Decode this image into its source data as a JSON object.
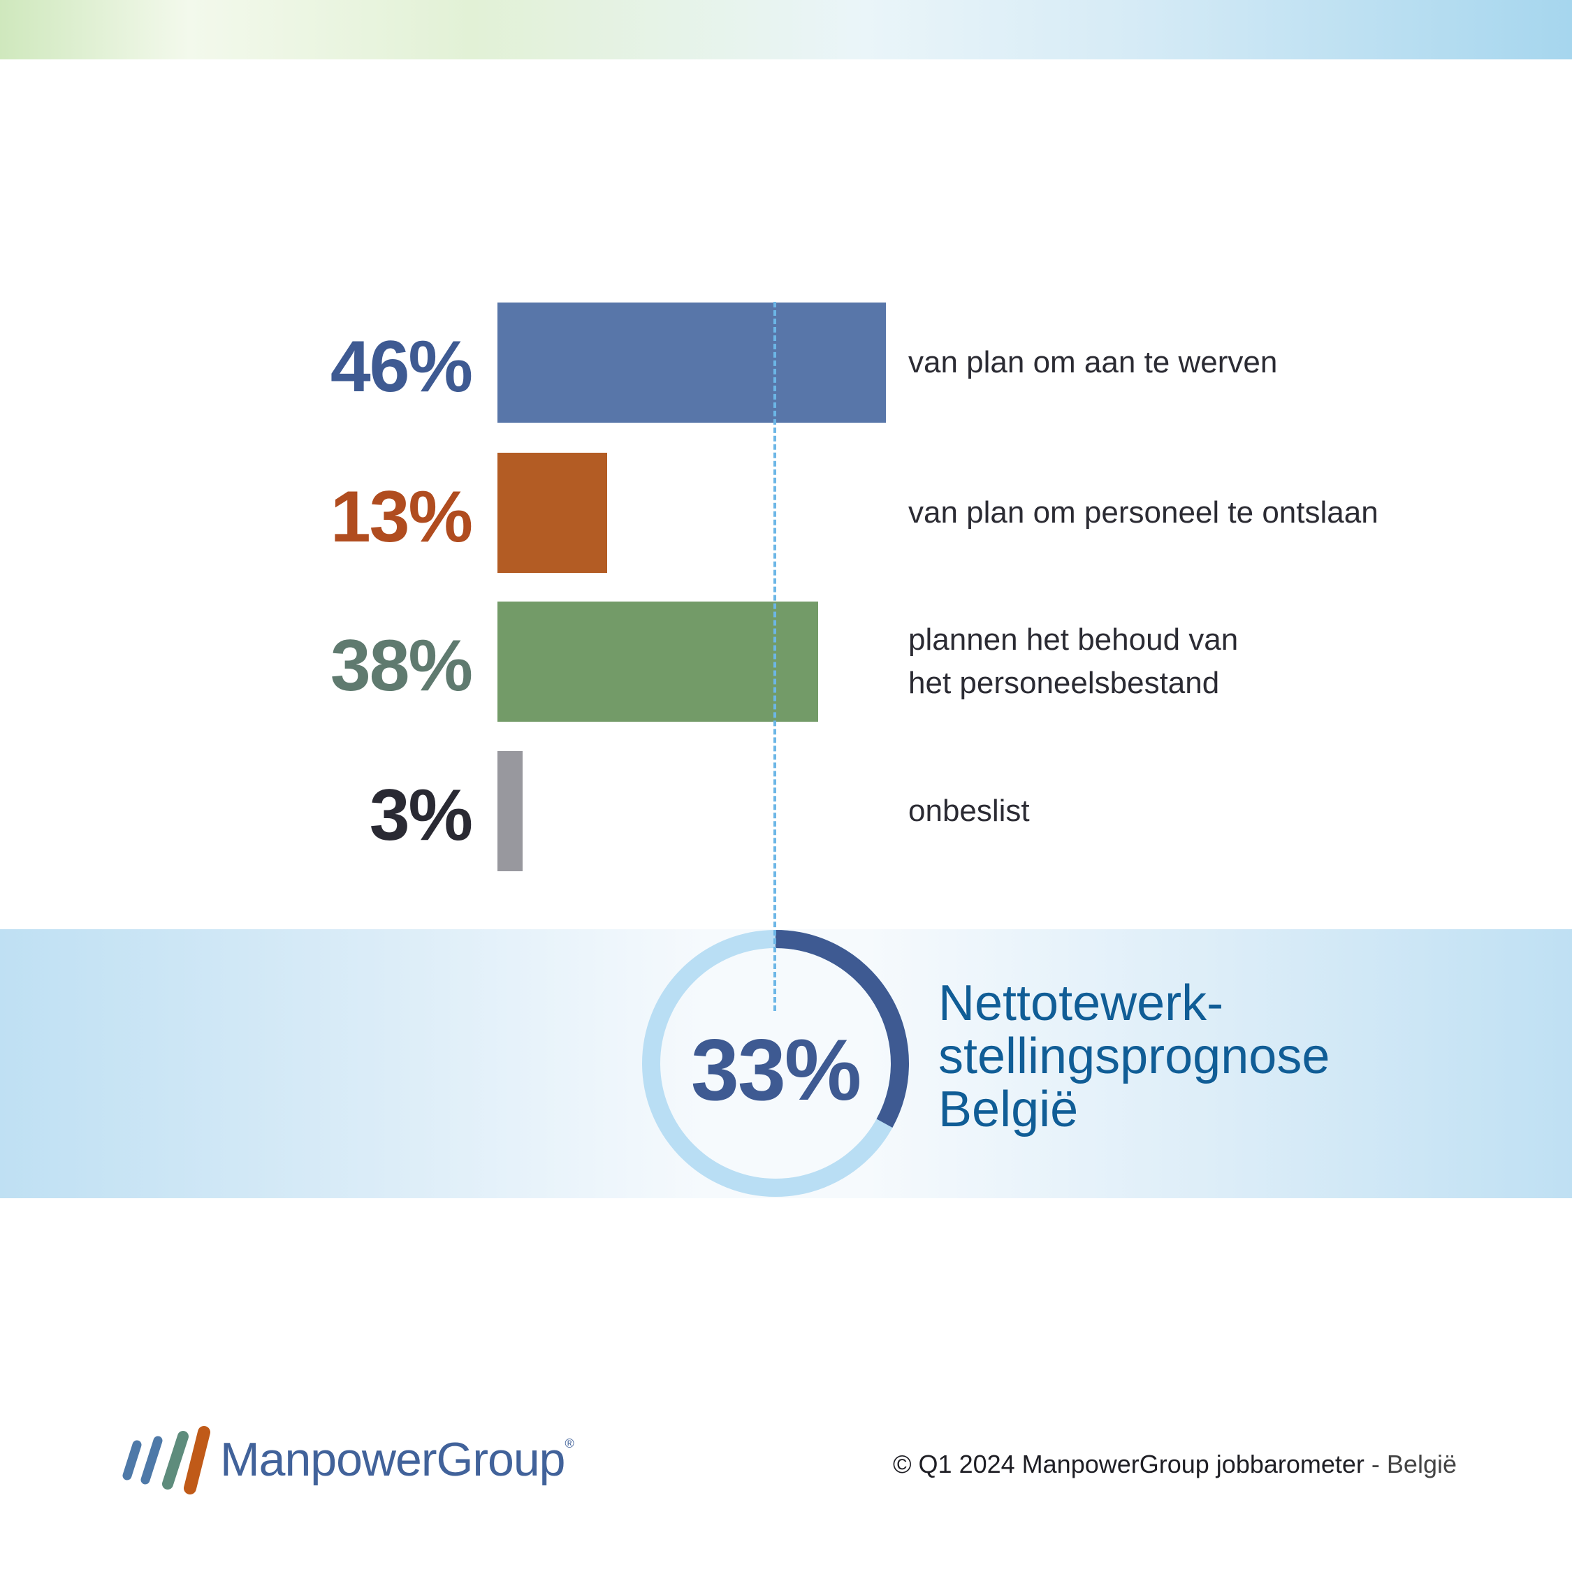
{
  "chart_data": {
    "type": "bar",
    "orientation": "horizontal",
    "categories": [
      "van plan om aan te werven",
      "van plan om personeel te ontslaan",
      "plannen het behoud van het personeelsbestand",
      "onbeslist"
    ],
    "category_lines": [
      [
        "van plan om aan te werven"
      ],
      [
        "van plan om personeel te ontslaan"
      ],
      [
        "plannen het behoud van",
        "het personeelsbestand"
      ],
      [
        "onbeslist"
      ]
    ],
    "values": [
      46,
      13,
      38,
      3
    ],
    "value_labels": [
      "46%",
      "13%",
      "38%",
      "3%"
    ],
    "colors": [
      "#5876a9",
      "#b35c24",
      "#739b68",
      "#98989e"
    ],
    "label_colors": [
      "#3e5a92",
      "#b04c1f",
      "#5f7a6f",
      "#2a2a33"
    ],
    "net_outlook": {
      "value": 33,
      "label": "33%",
      "title_lines": [
        "Nettotewerk-",
        "stellingsprognose",
        "België"
      ],
      "ring_color": "#b9def4",
      "arc_color": "#3e5a92"
    }
  },
  "footer": {
    "logo_text": "ManpowerGroup",
    "logo_mark": "®",
    "copyright": "© Q1 2024 ManpowerGroup jobbarometer",
    "copyright_suffix": " - België"
  }
}
